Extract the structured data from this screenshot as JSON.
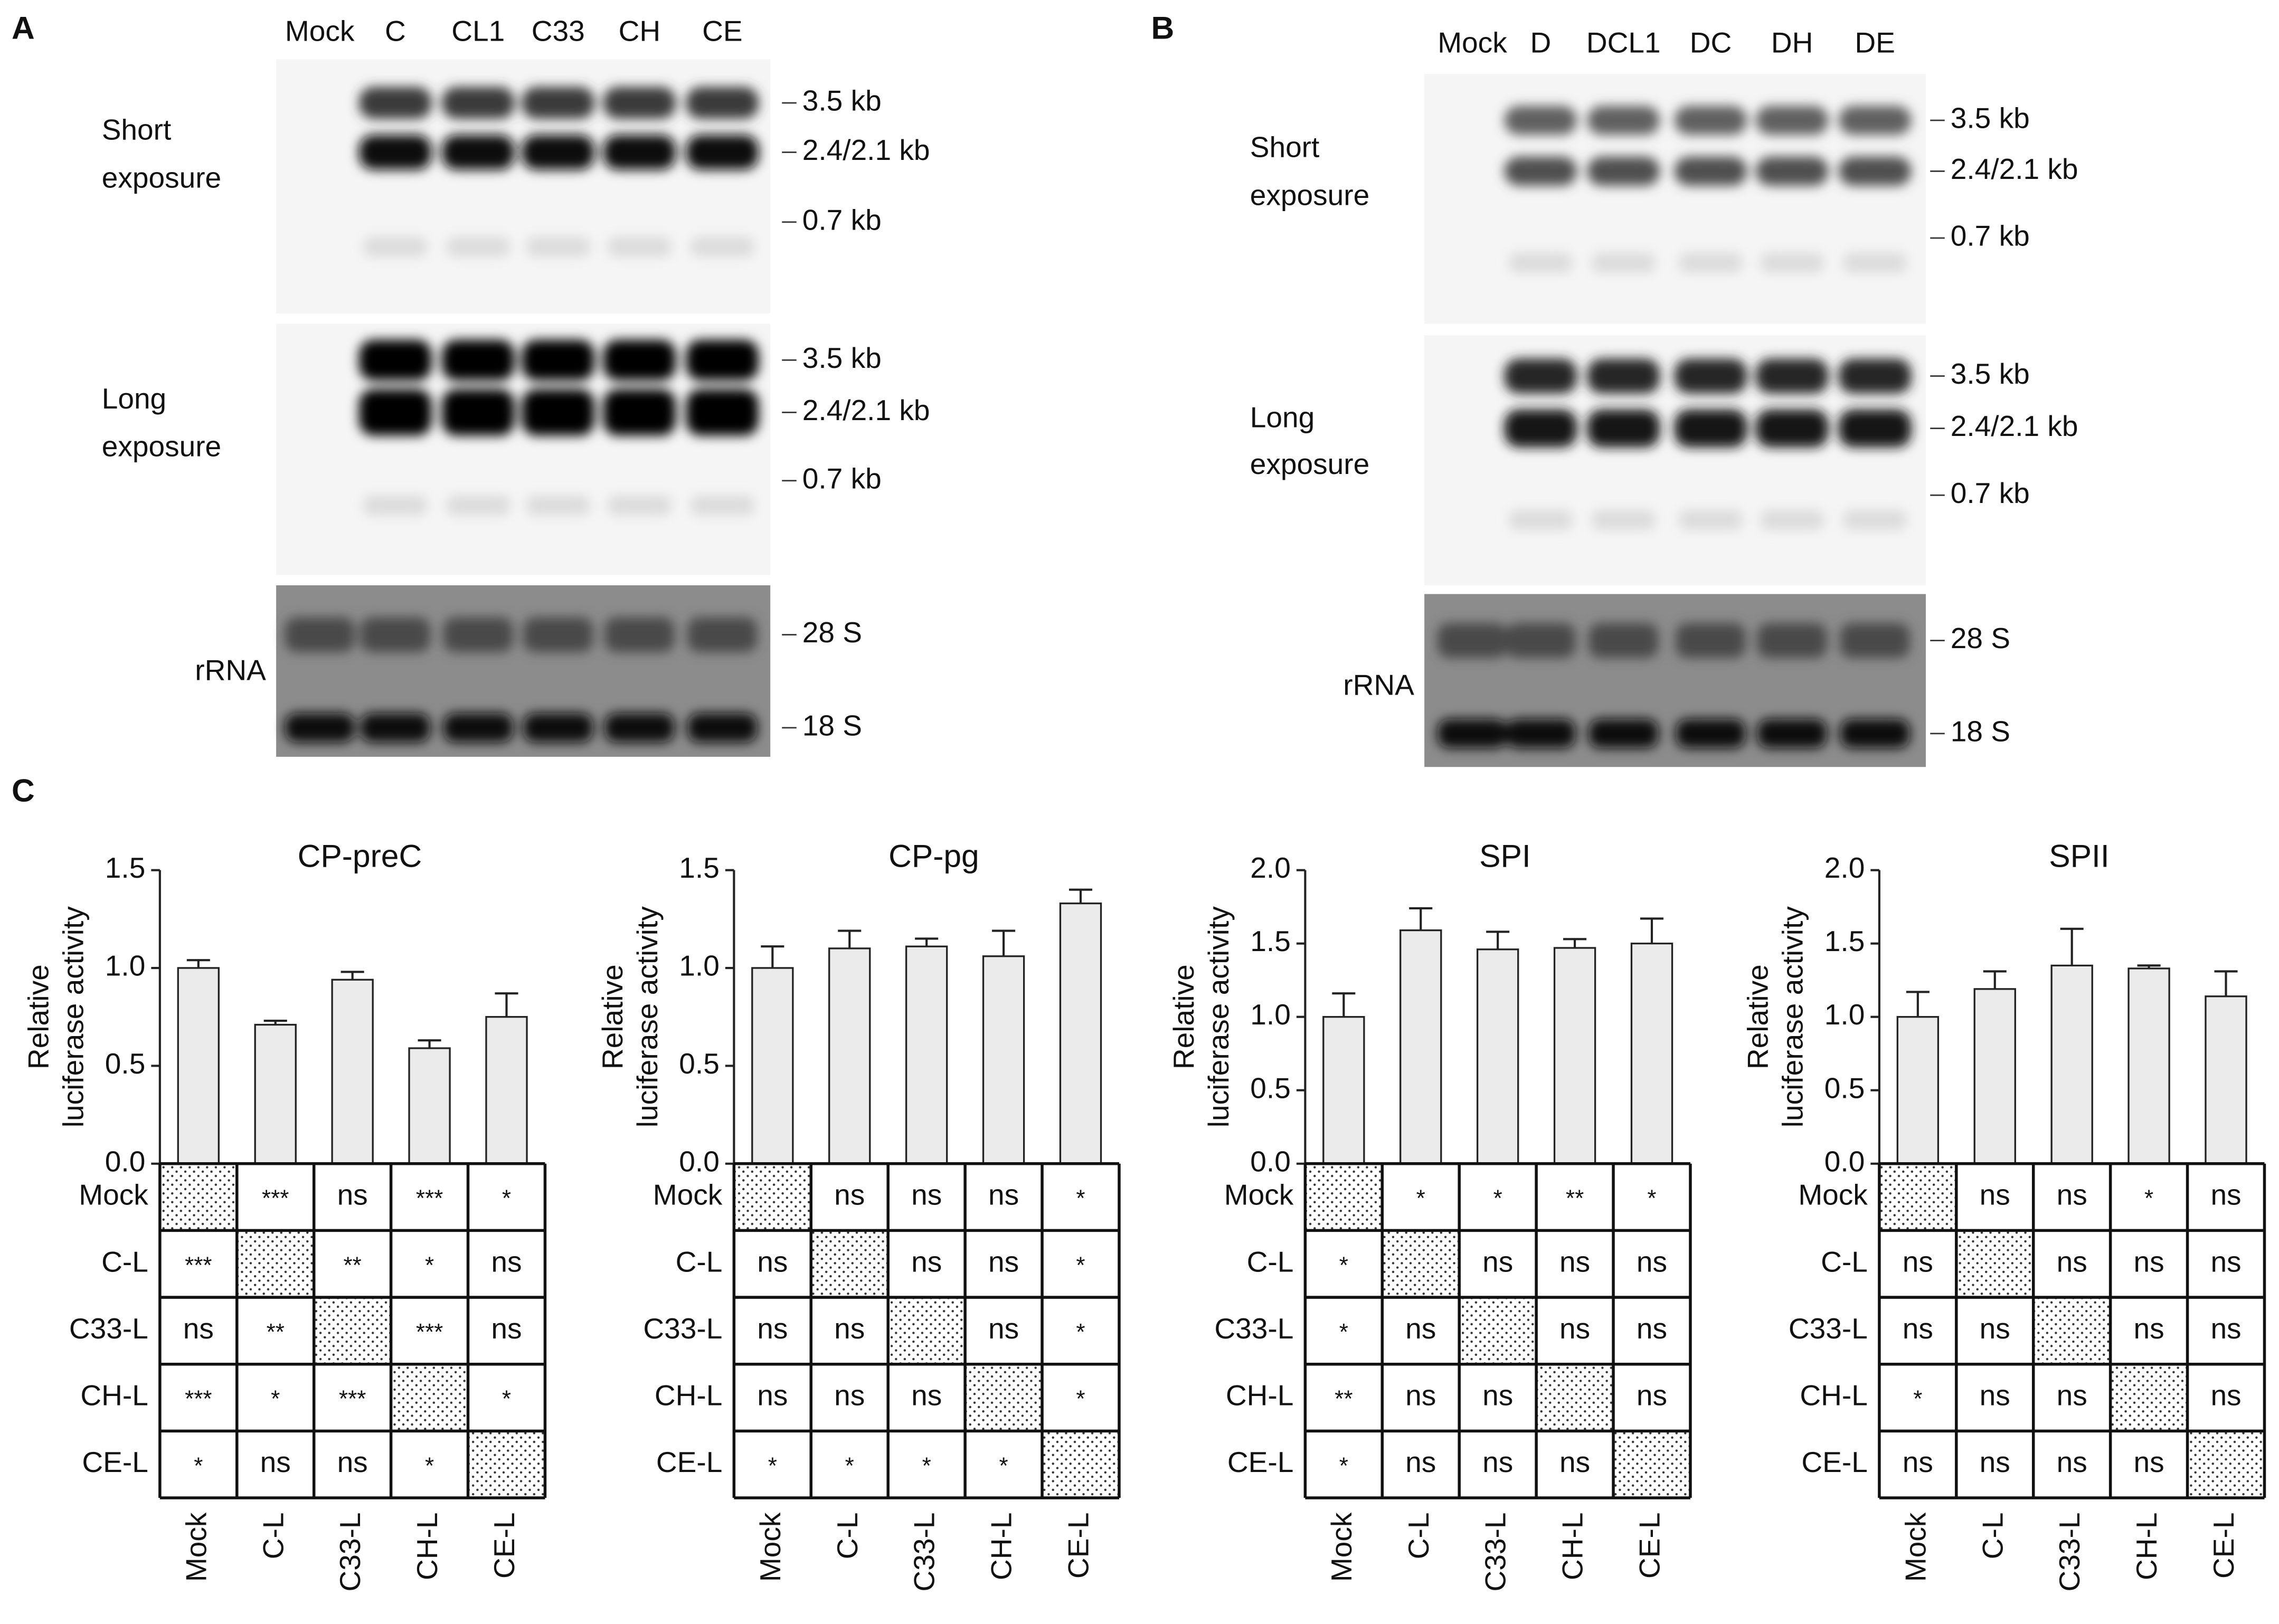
{
  "panel_labels": [
    "A",
    "B",
    "C"
  ],
  "blots": [
    {
      "lanes": [
        "Mock",
        "C",
        "CL1",
        "C33",
        "CH",
        "CE"
      ],
      "sections": [
        {
          "label": [
            "Short",
            "exposure"
          ],
          "markers": [
            "3.5 kb",
            "2.4/2.1 kb",
            "0.7 kb"
          ]
        },
        {
          "label": [
            "Long",
            "exposure"
          ],
          "markers": [
            "3.5 kb",
            "2.4/2.1 kb",
            "0.7 kb"
          ]
        },
        {
          "label": [
            "rRNA"
          ],
          "markers": [
            "28 S",
            "18 S"
          ]
        }
      ]
    },
    {
      "lanes": [
        "Mock",
        "D",
        "DCL1",
        "DC",
        "DH",
        "DE"
      ],
      "sections": [
        {
          "label": [
            "Short",
            "exposure"
          ],
          "markers": [
            "3.5 kb",
            "2.4/2.1 kb",
            "0.7 kb"
          ]
        },
        {
          "label": [
            "Long",
            "exposure"
          ],
          "markers": [
            "3.5 kb",
            "2.4/2.1 kb",
            "0.7 kb"
          ]
        },
        {
          "label": [
            "rRNA"
          ],
          "markers": [
            "28 S",
            "18 S"
          ]
        }
      ]
    }
  ],
  "chart_data": [
    {
      "type": "bar",
      "title": "CP-preC",
      "y_label": [
        "Relative",
        "luciferase activity"
      ],
      "categories": [
        "Mock",
        "C-L",
        "C33-L",
        "CH-L",
        "CE-L"
      ],
      "values": [
        1.0,
        0.71,
        0.94,
        0.59,
        0.75
      ],
      "errors": [
        0.04,
        0.02,
        0.04,
        0.04,
        0.12
      ],
      "color": "#ebebeb",
      "grid": false,
      "ylim": [
        0,
        1.5
      ],
      "yticks": [
        {
          "value": 0,
          "label": "0.0"
        },
        0.5,
        {
          "value": 1,
          "label": "1.0"
        },
        1.5
      ],
      "significance": [
        [
          null,
          "***",
          "ns",
          "***",
          "*"
        ],
        [
          "***",
          null,
          "**",
          "*",
          "ns"
        ],
        [
          "ns",
          "**",
          null,
          "***",
          "ns"
        ],
        [
          "***",
          "*",
          "***",
          null,
          "*"
        ],
        [
          "*",
          "ns",
          "ns",
          "*",
          null
        ]
      ]
    },
    {
      "type": "bar",
      "title": "CP-pg",
      "y_label": [
        "Relative",
        "luciferase activity"
      ],
      "categories": [
        "Mock",
        "C-L",
        "C33-L",
        "CH-L",
        "CE-L"
      ],
      "values": [
        1.0,
        1.1,
        1.11,
        1.06,
        1.33
      ],
      "errors": [
        0.11,
        0.09,
        0.04,
        0.13,
        0.07
      ],
      "color": "#ebebeb",
      "grid": false,
      "ylim": [
        0,
        1.5
      ],
      "yticks": [
        {
          "value": 0,
          "label": "0.0"
        },
        0.5,
        {
          "value": 1,
          "label": "1.0"
        },
        1.5
      ],
      "significance": [
        [
          null,
          "ns",
          "ns",
          "ns",
          "*"
        ],
        [
          "ns",
          null,
          "ns",
          "ns",
          "*"
        ],
        [
          "ns",
          "ns",
          null,
          "ns",
          "*"
        ],
        [
          "ns",
          "ns",
          "ns",
          null,
          "*"
        ],
        [
          "*",
          "*",
          "*",
          "*",
          null
        ]
      ]
    },
    {
      "type": "bar",
      "title": "SPI",
      "y_label": [
        "Relative",
        "luciferase activity"
      ],
      "categories": [
        "Mock",
        "C-L",
        "C33-L",
        "CH-L",
        "CE-L"
      ],
      "values": [
        1.0,
        1.59,
        1.46,
        1.47,
        1.5
      ],
      "errors": [
        0.16,
        0.15,
        0.12,
        0.06,
        0.17
      ],
      "color": "#ebebeb",
      "grid": false,
      "ylim": [
        0,
        2
      ],
      "yticks": [
        {
          "value": 0,
          "label": "0.0"
        },
        0.5,
        {
          "value": 1,
          "label": "1.0"
        },
        1.5,
        {
          "value": 2,
          "label": "2.0"
        }
      ],
      "significance": [
        [
          null,
          "*",
          "*",
          "**",
          "*"
        ],
        [
          "*",
          null,
          "ns",
          "ns",
          "ns"
        ],
        [
          "*",
          "ns",
          null,
          "ns",
          "ns"
        ],
        [
          "**",
          "ns",
          "ns",
          null,
          "ns"
        ],
        [
          "*",
          "ns",
          "ns",
          "ns",
          null
        ]
      ]
    },
    {
      "type": "bar",
      "title": "SPII",
      "y_label": [
        "Relative",
        "luciferase activity"
      ],
      "categories": [
        "Mock",
        "C-L",
        "C33-L",
        "CH-L",
        "CE-L"
      ],
      "values": [
        1.0,
        1.19,
        1.35,
        1.33,
        1.14
      ],
      "errors": [
        0.17,
        0.12,
        0.25,
        0.02,
        0.17
      ],
      "color": "#ebebeb",
      "grid": false,
      "ylim": [
        0,
        2
      ],
      "yticks": [
        {
          "value": 0,
          "label": "0.0"
        },
        0.5,
        {
          "value": 1,
          "label": "1.0"
        },
        1.5,
        {
          "value": 2,
          "label": "2.0"
        }
      ],
      "significance": [
        [
          null,
          "ns",
          "ns",
          "*",
          "ns"
        ],
        [
          "ns",
          null,
          "ns",
          "ns",
          "ns"
        ],
        [
          "ns",
          "ns",
          null,
          "ns",
          "ns"
        ],
        [
          "*",
          "ns",
          "ns",
          null,
          "ns"
        ],
        [
          "ns",
          "ns",
          "ns",
          "ns",
          null
        ]
      ]
    }
  ]
}
